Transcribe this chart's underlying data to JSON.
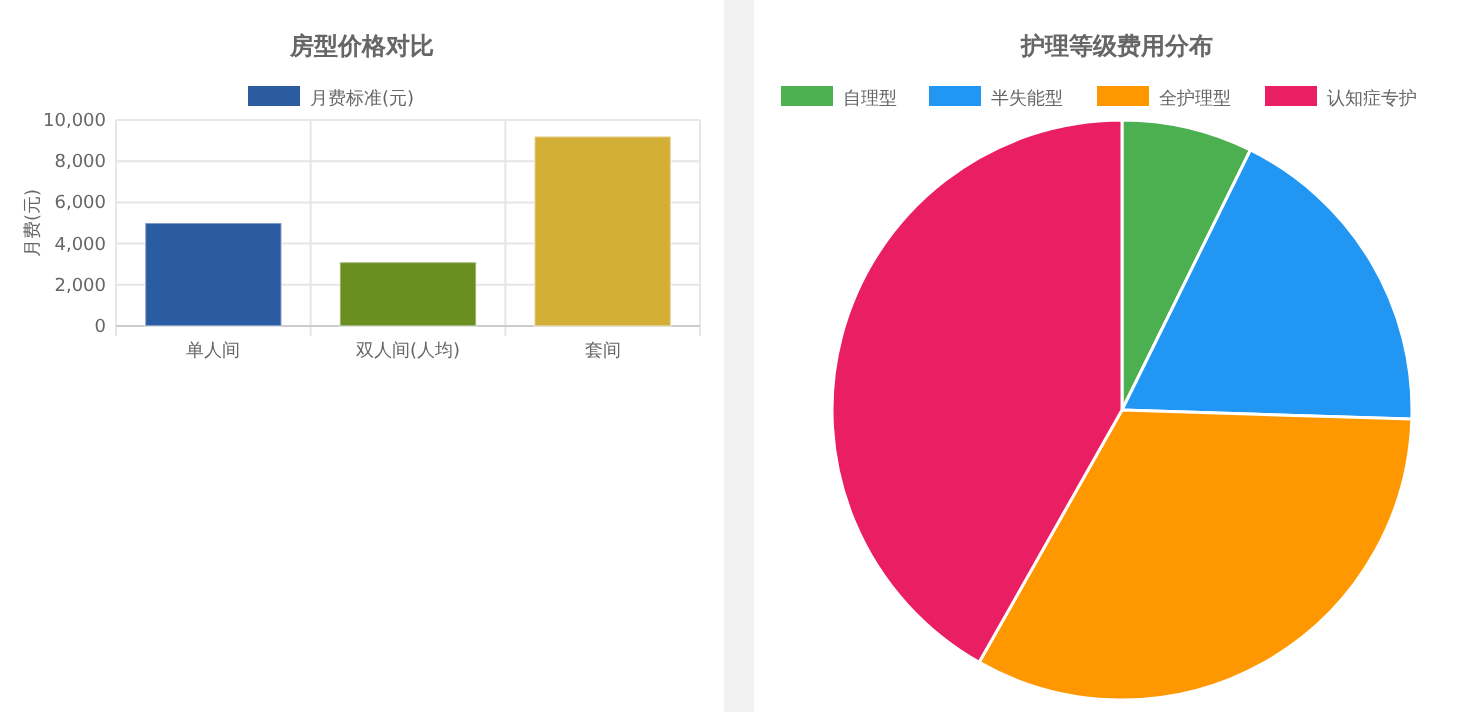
{
  "chart_data": [
    {
      "type": "bar",
      "title": "房型价格对比",
      "ylabel": "月费(元)",
      "categories": [
        "单人间",
        "双人间(人均)",
        "套间"
      ],
      "series": [
        {
          "name": "月费标准(元)",
          "color": "#2b5ba0",
          "colors": [
            "#2b5ba0",
            "#6b8e23",
            "#d4af37"
          ],
          "values": [
            5000,
            3100,
            9200
          ]
        }
      ],
      "ylim": [
        0,
        10000
      ],
      "yticks": [
        {
          "value": 0,
          "label": "0"
        },
        {
          "value": 2000,
          "label": "2,000"
        },
        {
          "value": 4000,
          "label": "4,000"
        },
        {
          "value": 6000,
          "label": "6,000"
        },
        {
          "value": 8000,
          "label": "8,000"
        },
        {
          "value": 10000,
          "label": "10,000"
        }
      ],
      "grid": true,
      "legend": "top"
    },
    {
      "type": "pie",
      "title": "护理等级费用分布",
      "categories": [
        "自理型",
        "半失能型",
        "全护理型",
        "认知症专护"
      ],
      "values": [
        7.3,
        18.2,
        32.7,
        41.8
      ],
      "colors": [
        "#4caf50",
        "#2196f3",
        "#ff9800",
        "#e91e63"
      ],
      "legend": "top"
    }
  ]
}
